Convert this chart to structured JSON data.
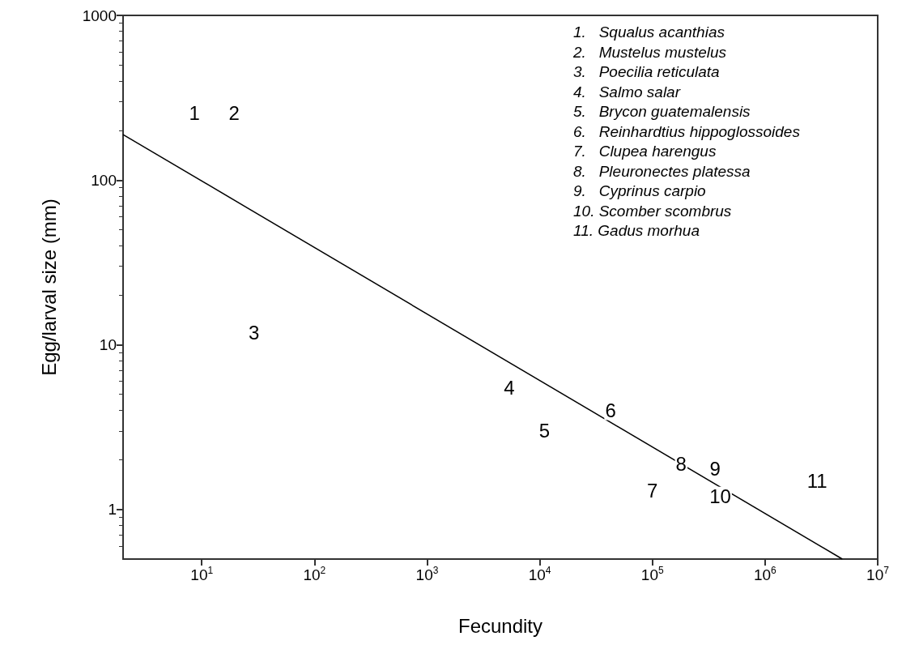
{
  "chart_data": {
    "type": "line",
    "xlabel": "Fecundity",
    "ylabel": "Egg/larval size (mm)",
    "log": "xy",
    "xlim": [
      2,
      10000000
    ],
    "ylim": [
      0.5,
      1000
    ],
    "xticks": [
      {
        "value": 10,
        "label": "10$^{1}$"
      },
      {
        "value": 100,
        "label": "10$^{2}$"
      },
      {
        "value": 1000,
        "label": "10$^{3}$"
      },
      {
        "value": 10000,
        "label": "10$^{4}$"
      },
      {
        "value": 100000,
        "label": "10$^{5}$"
      },
      {
        "value": 1000000,
        "label": "10$^{6}$"
      },
      {
        "value": 10000000,
        "label": "10$^{7}$"
      }
    ],
    "yticks": [
      1,
      10,
      100,
      1000
    ],
    "grid": false,
    "marker": "none",
    "line_style": "solid",
    "series": [
      {
        "x": [
          2,
          4850000
        ],
        "values": [
          189,
          0.5
        ],
        "color": "#000000"
      }
    ],
    "annotations": [
      {
        "text": "1",
        "x": 8.6,
        "y": 256
      },
      {
        "text": "2",
        "x": 19.4,
        "y": 256
      },
      {
        "text": "3",
        "x": 29,
        "y": 11.9
      },
      {
        "text": "4",
        "x": 5360,
        "y": 5.5
      },
      {
        "text": "5",
        "x": 11000,
        "y": 3.0
      },
      {
        "text": "6",
        "x": 42500,
        "y": 4.0
      },
      {
        "text": "7",
        "x": 100000,
        "y": 1.3
      },
      {
        "text": "8",
        "x": 180000,
        "y": 1.9
      },
      {
        "text": "9",
        "x": 360000,
        "y": 1.76
      },
      {
        "text": "10",
        "x": 400000,
        "y": 1.2
      },
      {
        "text": "11",
        "x": 2900000,
        "y": 1.5
      },
      "1.   Squalus acanthias",
      "2.   Mustelus mustelus",
      "3.   Poecilia reticulata",
      "4.   Salmo salar",
      "5.   Brycon guatemalensis",
      "6.   Reinhardtius hippoglossoides",
      "7.   Clupea harengus",
      "8.   Pleuronectes platessa",
      "9.   Cyprinus carpio",
      "10. Scomber scombrus",
      "11. Gadus morhua"
    ]
  }
}
